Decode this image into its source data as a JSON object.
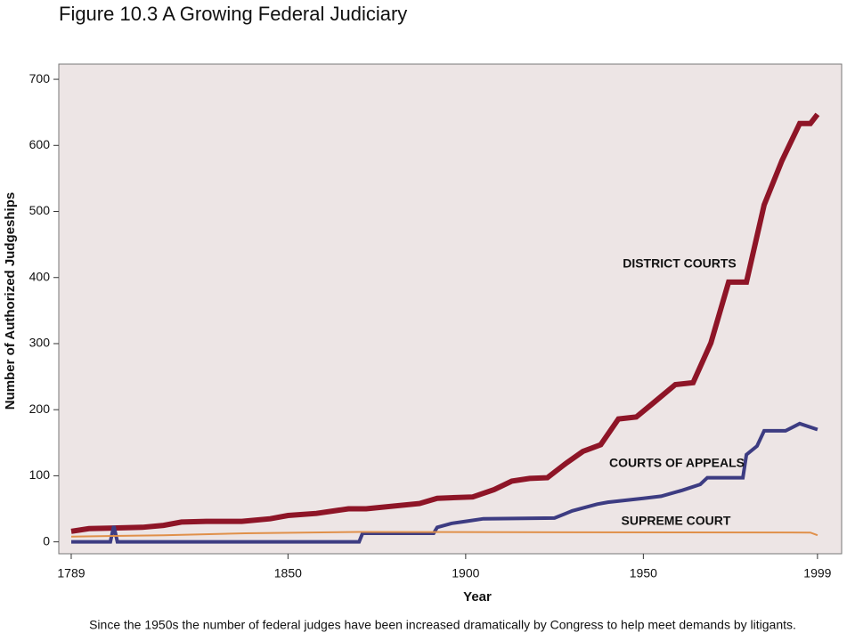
{
  "chart_data": {
    "type": "line",
    "title": "Figure 10.3  A Growing Federal Judiciary",
    "x_label": "Year",
    "y_label": "Number of Authorized Judgeships",
    "caption": "Since the 1950s the number of federal judges have been increased dramatically by Congress to help meet demands by litigants.",
    "xlim": [
      1785.5,
      2005.8
    ],
    "ylim": [
      -18,
      723
    ],
    "xticks": [
      1789,
      1850,
      1900,
      1950,
      1999
    ],
    "yticks": [
      0,
      100,
      200,
      300,
      400,
      500,
      600,
      700
    ],
    "annotations": [
      "DISTRICT COURTS",
      "COURTS OF APPEALS",
      "SUPREME COURT"
    ],
    "series": [
      {
        "name": "DISTRICT COURTS",
        "color": "#8e1527",
        "x": [
          1789,
          1794,
          1809,
          1815,
          1820,
          1827,
          1837,
          1845,
          1850,
          1858,
          1867,
          1872,
          1887,
          1892,
          1902,
          1908,
          1913,
          1918,
          1923,
          1928,
          1933,
          1938,
          1943,
          1948,
          1953,
          1959,
          1964,
          1969,
          1974,
          1979,
          1984,
          1989,
          1994,
          1997,
          1999
        ],
        "values": [
          16,
          20,
          22,
          25,
          30,
          31,
          31,
          35,
          40,
          43,
          50,
          50,
          58,
          66,
          68,
          79,
          92,
          96,
          97,
          118,
          137,
          147,
          186,
          189,
          211,
          238,
          241,
          301,
          393,
          393,
          510,
          577,
          633,
          633,
          647
        ]
      },
      {
        "name": "COURTS OF APPEALS",
        "color": "#3d3c82",
        "x": [
          1789,
          1800,
          1801,
          1802,
          1870,
          1871,
          1891,
          1892,
          1896,
          1900,
          1905,
          1925,
          1930,
          1937,
          1940,
          1950,
          1955,
          1961,
          1966,
          1968,
          1978,
          1979,
          1982,
          1984,
          1990,
          1994,
          1999
        ],
        "values": [
          0,
          0,
          24,
          0,
          0,
          13,
          13,
          22,
          28,
          31,
          35,
          36,
          47,
          57,
          60,
          66,
          69,
          78,
          87,
          97,
          97,
          132,
          145,
          168,
          168,
          179,
          170
        ]
      },
      {
        "name": "SUPREME COURT",
        "color": "#e0904a",
        "x": [
          1789,
          1815,
          1838,
          1870,
          1997,
          1999
        ],
        "values": [
          8,
          10,
          13,
          15,
          14,
          10
        ]
      }
    ]
  }
}
